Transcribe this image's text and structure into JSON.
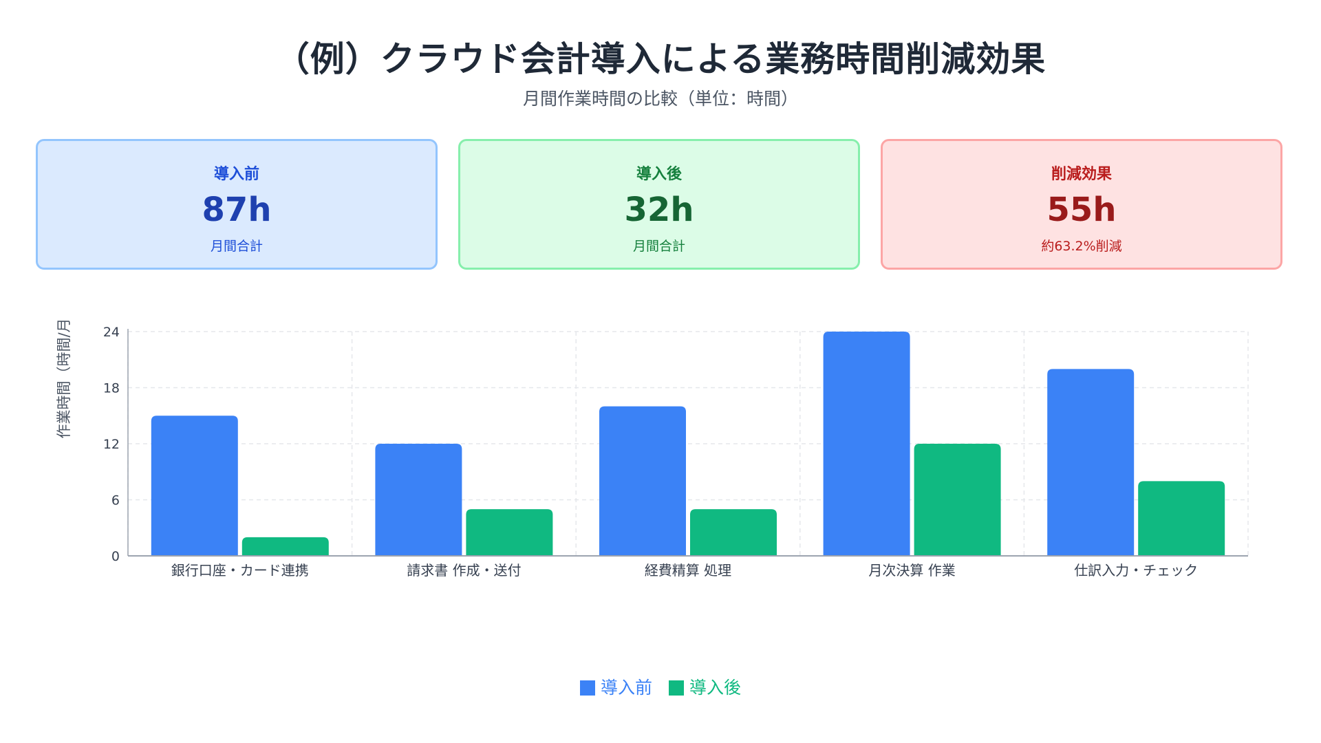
{
  "header": {
    "title": "（例）クラウド会計導入による業務時間削減効果",
    "subtitle": "月間作業時間の比較（単位：時間）"
  },
  "cards": [
    {
      "label": "導入前",
      "value": "87h",
      "note": "月間合計"
    },
    {
      "label": "導入後",
      "value": "32h",
      "note": "月間合計"
    },
    {
      "label": "削減効果",
      "value": "55h",
      "note": "約63.2%削減"
    }
  ],
  "colors": {
    "before": "#3b82f6",
    "after": "#10b981",
    "grid": "#e5e7eb",
    "axis": "#9ca3af"
  },
  "chart_data": {
    "type": "bar",
    "title": "",
    "xlabel": "",
    "ylabel": "作業時間（時間/月",
    "ylim": [
      0,
      24
    ],
    "yticks": [
      0,
      6,
      12,
      18,
      24
    ],
    "grid": true,
    "legend_position": "bottom",
    "categories": [
      "銀行口座・カード連携",
      "請求書 作成・送付",
      "経費精算 処理",
      "月次決算 作業",
      "仕訳入力・チェック"
    ],
    "series": [
      {
        "name": "導入前",
        "values": [
          15,
          12,
          16,
          24,
          20
        ]
      },
      {
        "name": "導入後",
        "values": [
          2,
          5,
          5,
          12,
          8
        ]
      }
    ]
  }
}
